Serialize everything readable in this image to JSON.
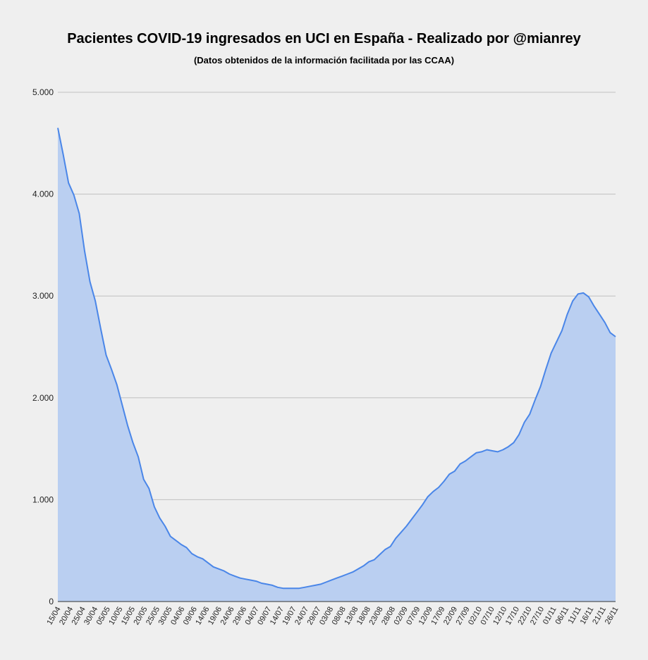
{
  "chart_data": {
    "type": "area",
    "title": "Pacientes COVID-19 ingresados en UCI en España - Realizado por @mianrey",
    "subtitle": "(Datos obtenidos de la información facilitada por las CCAA)",
    "xlabel": "",
    "ylabel": "",
    "ylim": [
      0,
      5000
    ],
    "y_ticks": [
      {
        "value": 0,
        "label": "0"
      },
      {
        "value": 1000,
        "label": "1.000"
      },
      {
        "value": 2000,
        "label": "2.000"
      },
      {
        "value": 3000,
        "label": "3.000"
      },
      {
        "value": 4000,
        "label": "4.000"
      },
      {
        "value": 5000,
        "label": "5.000"
      }
    ],
    "x_tick_labels": [
      "15/04",
      "20/04",
      "25/04",
      "30/04",
      "05/05",
      "10/05",
      "15/05",
      "20/05",
      "25/05",
      "30/05",
      "04/06",
      "09/06",
      "14/06",
      "19/06",
      "24/06",
      "29/06",
      "04/07",
      "09/07",
      "14/07",
      "19/07",
      "24/07",
      "29/07",
      "03/08",
      "08/08",
      "13/08",
      "18/08",
      "23/08",
      "28/08",
      "02/09",
      "07/09",
      "12/09",
      "17/09",
      "22/09",
      "27/09",
      "02/10",
      "07/10",
      "12/10",
      "17/10",
      "22/10",
      "27/10",
      "01/11",
      "06/11",
      "11/11",
      "16/11",
      "21/11",
      "26/11"
    ],
    "x_tick_interval_days": 5,
    "grid": true,
    "colors": {
      "line": "#4a86e8",
      "fill": "#bacff1",
      "grid": "#c0c0c0"
    },
    "series": [
      {
        "values": [
          4650,
          4390,
          4110,
          3990,
          3810,
          3440,
          3140,
          2950,
          2680,
          2420,
          2280,
          2130,
          1930,
          1730,
          1560,
          1420,
          1200,
          1110,
          930,
          820,
          740,
          640,
          600,
          560,
          530,
          470,
          440,
          420,
          380,
          340,
          320,
          300,
          270,
          250,
          230,
          220,
          210,
          200,
          180,
          170,
          160,
          140,
          130,
          130,
          130,
          130,
          140,
          150,
          160,
          170,
          190,
          210,
          230,
          250,
          270,
          290,
          320,
          350,
          390,
          410,
          460,
          510,
          540,
          620,
          680,
          740,
          810,
          880,
          950,
          1030,
          1080,
          1120,
          1180,
          1250,
          1280,
          1350,
          1380,
          1420,
          1460,
          1470,
          1490,
          1480,
          1470,
          1490,
          1520,
          1560,
          1640,
          1760,
          1840,
          1980,
          2110,
          2280,
          2440,
          2550,
          2660,
          2820,
          2950,
          3020,
          3030,
          2990,
          2900,
          2820,
          2740,
          2640,
          2600
        ]
      }
    ]
  }
}
